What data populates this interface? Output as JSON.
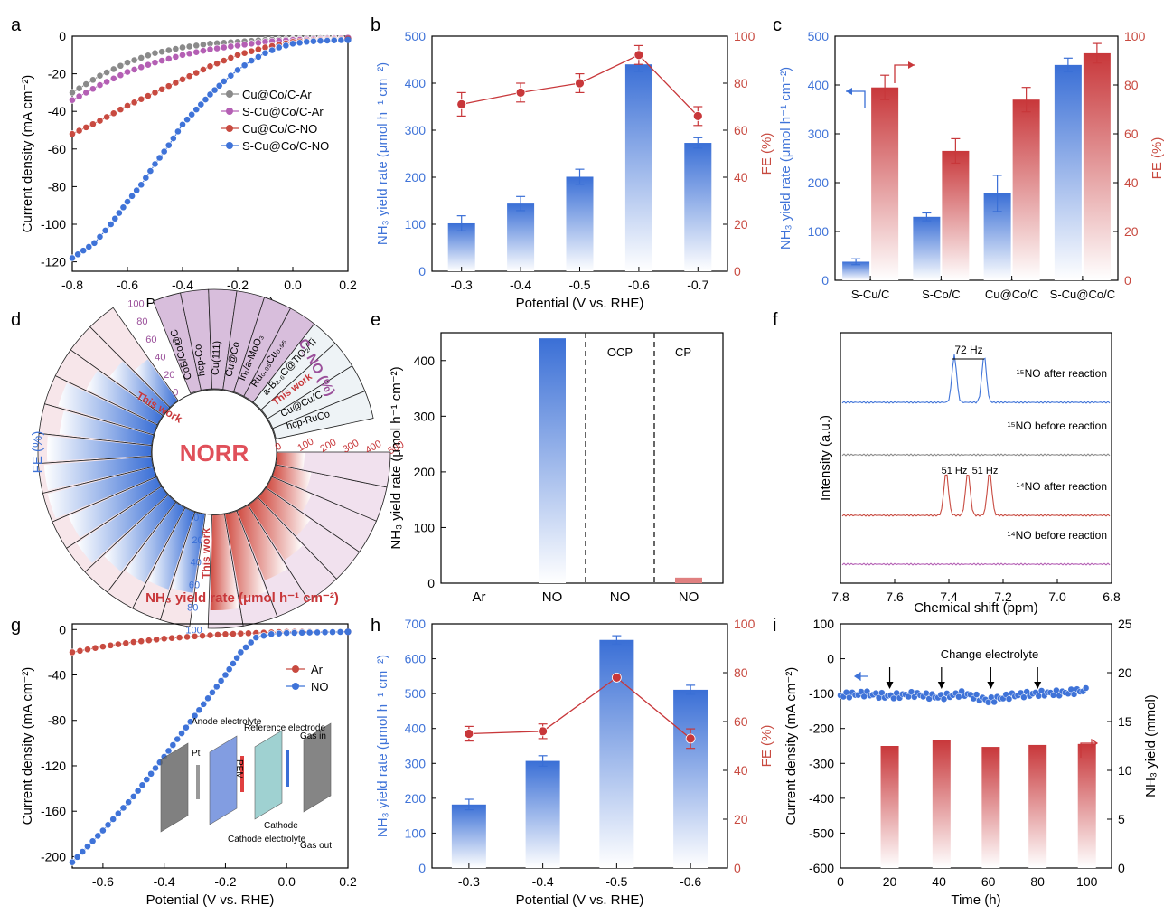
{
  "colors": {
    "blue": "#3f73d8",
    "red": "#c84a40",
    "gray": "#8a8a8a",
    "purple": "#b45fb4",
    "pink_bg": "#f4e4ee",
    "lilac_bg": "#dcc6de"
  },
  "panels": {
    "a": "a",
    "b": "b",
    "c": "c",
    "d": "d",
    "e": "e",
    "f": "f",
    "g": "g",
    "h": "h",
    "i": "i"
  },
  "chart_data": [
    {
      "panel": "a",
      "type": "line",
      "xlabel": "Potential (V vs. RHE)",
      "ylabel": "Current density (mA cm⁻²)",
      "xlim": [
        -0.8,
        0.2
      ],
      "ylim": [
        -125,
        0
      ],
      "xticks": [
        "-0.8",
        "-0.6",
        "-0.4",
        "-0.2",
        "0.0",
        "0.2"
      ],
      "yticks": [
        "0",
        "-20",
        "-40",
        "-60",
        "-80",
        "-100",
        "-120"
      ],
      "legend": "top-right",
      "series": [
        {
          "name": "Cu@Co/C-Ar",
          "color": "#8a8a8a",
          "points": [
            [
              -0.8,
              -30
            ],
            [
              -0.7,
              -21
            ],
            [
              -0.6,
              -14
            ],
            [
              -0.5,
              -9
            ],
            [
              -0.4,
              -6
            ],
            [
              -0.3,
              -4
            ],
            [
              -0.2,
              -3
            ],
            [
              -0.1,
              -2
            ],
            [
              0.0,
              -1.5
            ],
            [
              0.1,
              -1
            ],
            [
              0.2,
              -1
            ]
          ]
        },
        {
          "name": "S-Cu@Co/C-Ar",
          "color": "#b45fb4",
          "points": [
            [
              -0.8,
              -34
            ],
            [
              -0.7,
              -26
            ],
            [
              -0.6,
              -19
            ],
            [
              -0.5,
              -14
            ],
            [
              -0.4,
              -10
            ],
            [
              -0.3,
              -7
            ],
            [
              -0.2,
              -5
            ],
            [
              -0.1,
              -3
            ],
            [
              0.0,
              -2
            ],
            [
              0.1,
              -1.5
            ],
            [
              0.2,
              -1
            ]
          ]
        },
        {
          "name": "Cu@Co/C-NO",
          "color": "#c84a40",
          "points": [
            [
              -0.8,
              -52
            ],
            [
              -0.7,
              -45
            ],
            [
              -0.6,
              -37
            ],
            [
              -0.5,
              -30
            ],
            [
              -0.4,
              -23
            ],
            [
              -0.3,
              -16
            ],
            [
              -0.2,
              -10
            ],
            [
              -0.1,
              -6
            ],
            [
              0.0,
              -3
            ],
            [
              0.1,
              -2
            ],
            [
              0.2,
              -1.5
            ]
          ]
        },
        {
          "name": "S-Cu@Co/C-NO",
          "color": "#3f73d8",
          "points": [
            [
              -0.8,
              -118
            ],
            [
              -0.72,
              -110
            ],
            [
              -0.66,
              -100
            ],
            [
              -0.6,
              -88
            ],
            [
              -0.55,
              -79
            ],
            [
              -0.5,
              -68
            ],
            [
              -0.45,
              -58
            ],
            [
              -0.4,
              -47
            ],
            [
              -0.35,
              -39
            ],
            [
              -0.3,
              -31
            ],
            [
              -0.25,
              -24
            ],
            [
              -0.2,
              -18
            ],
            [
              -0.15,
              -13
            ],
            [
              -0.1,
              -9
            ],
            [
              -0.05,
              -6
            ],
            [
              0.0,
              -4
            ],
            [
              0.05,
              -3
            ],
            [
              0.1,
              -2.5
            ],
            [
              0.2,
              -2
            ]
          ]
        }
      ]
    },
    {
      "panel": "b",
      "type": "bar",
      "xlabel": "Potential (V vs. RHE)",
      "ylabel": "NH₃ yield rate (μmol h⁻¹ cm⁻²)",
      "y2label": "FE (%)",
      "categories": [
        "-0.3",
        "-0.4",
        "-0.5",
        "-0.6",
        "-0.7"
      ],
      "ylim": [
        0,
        500
      ],
      "y2lim": [
        0,
        100
      ],
      "yticks": [
        "0",
        "100",
        "200",
        "300",
        "400",
        "500"
      ],
      "y2ticks": [
        "0",
        "20",
        "40",
        "60",
        "80",
        "100"
      ],
      "series": [
        {
          "name": "NH₃ yield rate",
          "axis": "left",
          "values": [
            102,
            144,
            201,
            440,
            273
          ],
          "errors": [
            16,
            15,
            16,
            15,
            11
          ]
        },
        {
          "name": "FE",
          "axis": "right",
          "values": [
            71,
            76,
            80,
            92,
            66
          ],
          "errors": [
            5,
            4,
            4,
            4,
            4
          ]
        }
      ]
    },
    {
      "panel": "c",
      "type": "bar",
      "ylabel": "NH₃ yield rate (μmol h⁻¹ cm⁻²)",
      "y2label": "FE (%)",
      "categories": [
        "S-Cu/C",
        "S-Co/C",
        "Cu@Co/C",
        "S-Cu@Co/C"
      ],
      "ylim": [
        0,
        500
      ],
      "y2lim": [
        0,
        100
      ],
      "yticks": [
        "0",
        "100",
        "200",
        "300",
        "400",
        "500"
      ],
      "y2ticks": [
        "0",
        "20",
        "40",
        "60",
        "80",
        "100"
      ],
      "series": [
        {
          "name": "NH₃ yield rate",
          "axis": "left",
          "values": [
            38,
            130,
            178,
            441
          ],
          "errors": [
            6,
            8,
            37,
            14
          ]
        },
        {
          "name": "FE",
          "axis": "right",
          "values": [
            79,
            53,
            74,
            93
          ],
          "errors": [
            5,
            5,
            5,
            4
          ]
        }
      ]
    },
    {
      "panel": "d",
      "type": "bar",
      "center_label": "NORR",
      "axis_labels": {
        "fe": "FE (%)",
        "yield": "NH₃ yield rate (μmol h⁻¹ cm⁻²)",
        "cno": "C_NO (%)"
      },
      "fe_ticks": [
        "0",
        "20",
        "40",
        "60",
        "80",
        "100"
      ],
      "yield_ticks": [
        "0",
        "100",
        "200",
        "300",
        "400",
        "500"
      ],
      "cno_ticks": [
        "0",
        "20",
        "40",
        "60",
        "80",
        "100"
      ],
      "catalysts": [
        "CoB/Co@C",
        "hcp-Co",
        "Cu(111)",
        "Cu@Co",
        "In₁/a-MoO₃",
        "Ru₀.₀₅Cu₀.₉₅",
        "a-B₂.₆C@TiO₂/Ti",
        "This work",
        "Cu@Cu/C",
        "hcp-RuCo"
      ],
      "highlight": "This work"
    },
    {
      "panel": "e",
      "type": "bar",
      "ylabel": "NH₃ yield rate (μmol h⁻¹ cm⁻²)",
      "categories": [
        "Ar",
        "NO",
        "NO",
        "NO"
      ],
      "values": [
        0,
        440,
        0,
        10
      ],
      "ylim": [
        0,
        450
      ],
      "yticks": [
        "0",
        "100",
        "200",
        "300",
        "400"
      ],
      "group_labels": [
        "OCP",
        "CP"
      ]
    },
    {
      "panel": "f",
      "type": "line",
      "xlabel": "Chemical shift (ppm)",
      "ylabel": "Intensity (a.u.)",
      "xlim": [
        7.8,
        6.8
      ],
      "xticks": [
        "7.8",
        "7.6",
        "7.4",
        "7.2",
        "7.0",
        "6.8"
      ],
      "annotations": [
        "72 Hz",
        "51 Hz",
        "51 Hz"
      ],
      "series": [
        {
          "name": "¹⁵NO after reaction",
          "color": "#3f73d8",
          "peaks": [
            7.38,
            7.27
          ]
        },
        {
          "name": "¹⁵NO before reaction",
          "color": "#8a8a8a",
          "peaks": []
        },
        {
          "name": "¹⁴NO after reaction",
          "color": "#c84a40",
          "peaks": [
            7.41,
            7.33,
            7.25
          ]
        },
        {
          "name": "¹⁴NO before reaction",
          "color": "#b45fb4",
          "peaks": []
        }
      ]
    },
    {
      "panel": "g",
      "type": "line",
      "xlabel": "Potential (V vs. RHE)",
      "ylabel": "Current density (mA cm⁻²)",
      "xlim": [
        -0.7,
        0.2
      ],
      "ylim": [
        -210,
        5
      ],
      "xticks": [
        "-0.6",
        "-0.4",
        "-0.2",
        "0.0",
        "0.2"
      ],
      "yticks": [
        "0",
        "-40",
        "-80",
        "-120",
        "-160",
        "-200"
      ],
      "legend": "right",
      "inset_labels": [
        "Anode electrolyte",
        "Reference electrode",
        "Gas in",
        "Pt",
        "PEM",
        "Cathode",
        "Cathode electrolyte",
        "Gas out"
      ],
      "series": [
        {
          "name": "Ar",
          "color": "#c84a40",
          "points": [
            [
              -0.7,
              -20
            ],
            [
              -0.6,
              -15
            ],
            [
              -0.5,
              -11
            ],
            [
              -0.4,
              -8
            ],
            [
              -0.3,
              -6
            ],
            [
              -0.2,
              -4
            ],
            [
              -0.1,
              -3
            ],
            [
              0.0,
              -2
            ],
            [
              0.1,
              -2
            ],
            [
              0.2,
              -2
            ]
          ]
        },
        {
          "name": "NO",
          "color": "#3f73d8",
          "points": [
            [
              -0.7,
              -205
            ],
            [
              -0.6,
              -177
            ],
            [
              -0.5,
              -147
            ],
            [
              -0.4,
              -112
            ],
            [
              -0.3,
              -76
            ],
            [
              -0.2,
              -40
            ],
            [
              -0.15,
              -20
            ],
            [
              -0.1,
              -7
            ],
            [
              -0.05,
              -4
            ],
            [
              0.0,
              -3
            ],
            [
              0.1,
              -2.5
            ],
            [
              0.2,
              -2
            ]
          ]
        }
      ]
    },
    {
      "panel": "h",
      "type": "bar",
      "xlabel": "Potential (V vs. RHE)",
      "ylabel": "NH₃ yield rate (μmol h⁻¹ cm⁻²)",
      "y2label": "FE (%)",
      "categories": [
        "-0.3",
        "-0.4",
        "-0.5",
        "-0.6"
      ],
      "ylim": [
        0,
        700
      ],
      "y2lim": [
        0,
        100
      ],
      "yticks": [
        "0",
        "100",
        "200",
        "300",
        "400",
        "500",
        "600",
        "700"
      ],
      "y2ticks": [
        "0",
        "20",
        "40",
        "60",
        "80",
        "100"
      ],
      "series": [
        {
          "name": "NH₃ yield rate",
          "axis": "left",
          "values": [
            182,
            307,
            654,
            511
          ],
          "errors": [
            15,
            15,
            12,
            13
          ]
        },
        {
          "name": "FE",
          "axis": "right",
          "values": [
            55,
            56,
            78,
            53
          ],
          "errors": [
            3,
            3,
            1,
            4
          ]
        }
      ]
    },
    {
      "panel": "i",
      "type": "bar",
      "xlabel": "Time (h)",
      "ylabel": "Current density (mA cm⁻²)",
      "y2label": "NH₃ yield (mmol)",
      "xlim": [
        0,
        110
      ],
      "ylim": [
        -600,
        100
      ],
      "y2lim": [
        0,
        25
      ],
      "xticks": [
        "0",
        "20",
        "40",
        "60",
        "80",
        "100"
      ],
      "yticks": [
        "100",
        "0",
        "-100",
        "-200",
        "-300",
        "-400",
        "-500",
        "-600"
      ],
      "y2ticks": [
        "0",
        "5",
        "10",
        "15",
        "20",
        "25"
      ],
      "annotation": "Change electrolyte",
      "arrow_times": [
        20,
        41,
        61,
        80
      ],
      "bars": {
        "name": "NH₃ yield",
        "times": [
          20,
          41,
          61,
          80,
          100
        ],
        "values": [
          12.5,
          13.1,
          12.4,
          12.6,
          12.7
        ]
      },
      "current": {
        "name": "Current density",
        "times": [
          0,
          10,
          20,
          30,
          40,
          50,
          60,
          70,
          80,
          90,
          100
        ],
        "values": [
          -105,
          -100,
          -108,
          -102,
          -110,
          -100,
          -120,
          -105,
          -100,
          -98,
          -90
        ]
      }
    }
  ]
}
